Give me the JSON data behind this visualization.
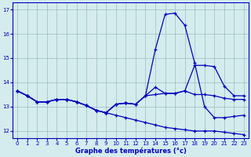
{
  "title": "Graphe des températures (°c)",
  "bg_color": "#d4ecee",
  "line_color": "#0000bb",
  "grid_color": "#9bbcbe",
  "xlim": [
    -0.5,
    23.5
  ],
  "ylim": [
    11.7,
    17.3
  ],
  "yticks": [
    12,
    13,
    14,
    15,
    16,
    17
  ],
  "xticks": [
    0,
    1,
    2,
    3,
    4,
    5,
    6,
    7,
    8,
    9,
    10,
    11,
    12,
    13,
    14,
    15,
    16,
    17,
    18,
    19,
    20,
    21,
    22,
    23
  ],
  "series": [
    {
      "x": [
        0,
        1,
        2,
        3,
        4,
        5,
        6,
        7,
        8,
        9,
        10,
        11,
        12,
        13,
        14,
        15,
        16,
        17,
        18,
        19,
        20,
        21,
        22,
        23
      ],
      "y": [
        13.65,
        13.45,
        13.2,
        13.2,
        13.3,
        13.3,
        13.2,
        13.05,
        12.85,
        12.75,
        13.1,
        13.15,
        13.1,
        13.45,
        15.35,
        16.8,
        16.85,
        16.35,
        14.8,
        13.0,
        12.55,
        12.55,
        12.6,
        12.65
      ]
    },
    {
      "x": [
        0,
        1,
        2,
        3,
        4,
        5,
        6,
        7,
        8,
        9,
        10,
        11,
        12,
        13,
        14,
        15,
        16,
        17,
        18,
        19,
        20,
        21,
        22,
        23
      ],
      "y": [
        13.65,
        13.45,
        13.2,
        13.2,
        13.3,
        13.3,
        13.2,
        13.05,
        12.85,
        12.75,
        13.1,
        13.15,
        13.1,
        13.45,
        13.8,
        13.55,
        13.55,
        13.65,
        14.7,
        14.7,
        14.65,
        13.85,
        13.45,
        13.45
      ]
    },
    {
      "x": [
        0,
        1,
        2,
        3,
        4,
        5,
        6,
        7,
        8,
        9,
        10,
        11,
        12,
        13,
        14,
        15,
        16,
        17,
        18,
        19,
        20,
        21,
        22,
        23
      ],
      "y": [
        13.65,
        13.45,
        13.2,
        13.2,
        13.3,
        13.3,
        13.2,
        13.05,
        12.85,
        12.75,
        13.1,
        13.15,
        13.1,
        13.45,
        13.5,
        13.55,
        13.55,
        13.65,
        13.5,
        13.5,
        13.45,
        13.35,
        13.3,
        13.3
      ]
    },
    {
      "x": [
        0,
        1,
        2,
        3,
        4,
        5,
        6,
        7,
        8,
        9,
        10,
        11,
        12,
        13,
        14,
        15,
        16,
        17,
        18,
        19,
        20,
        21,
        22,
        23
      ],
      "y": [
        13.65,
        13.45,
        13.2,
        13.2,
        13.3,
        13.3,
        13.2,
        13.05,
        12.85,
        12.75,
        12.65,
        12.55,
        12.45,
        12.35,
        12.25,
        12.15,
        12.1,
        12.05,
        12.0,
        12.0,
        12.0,
        11.95,
        11.9,
        11.85
      ]
    }
  ]
}
